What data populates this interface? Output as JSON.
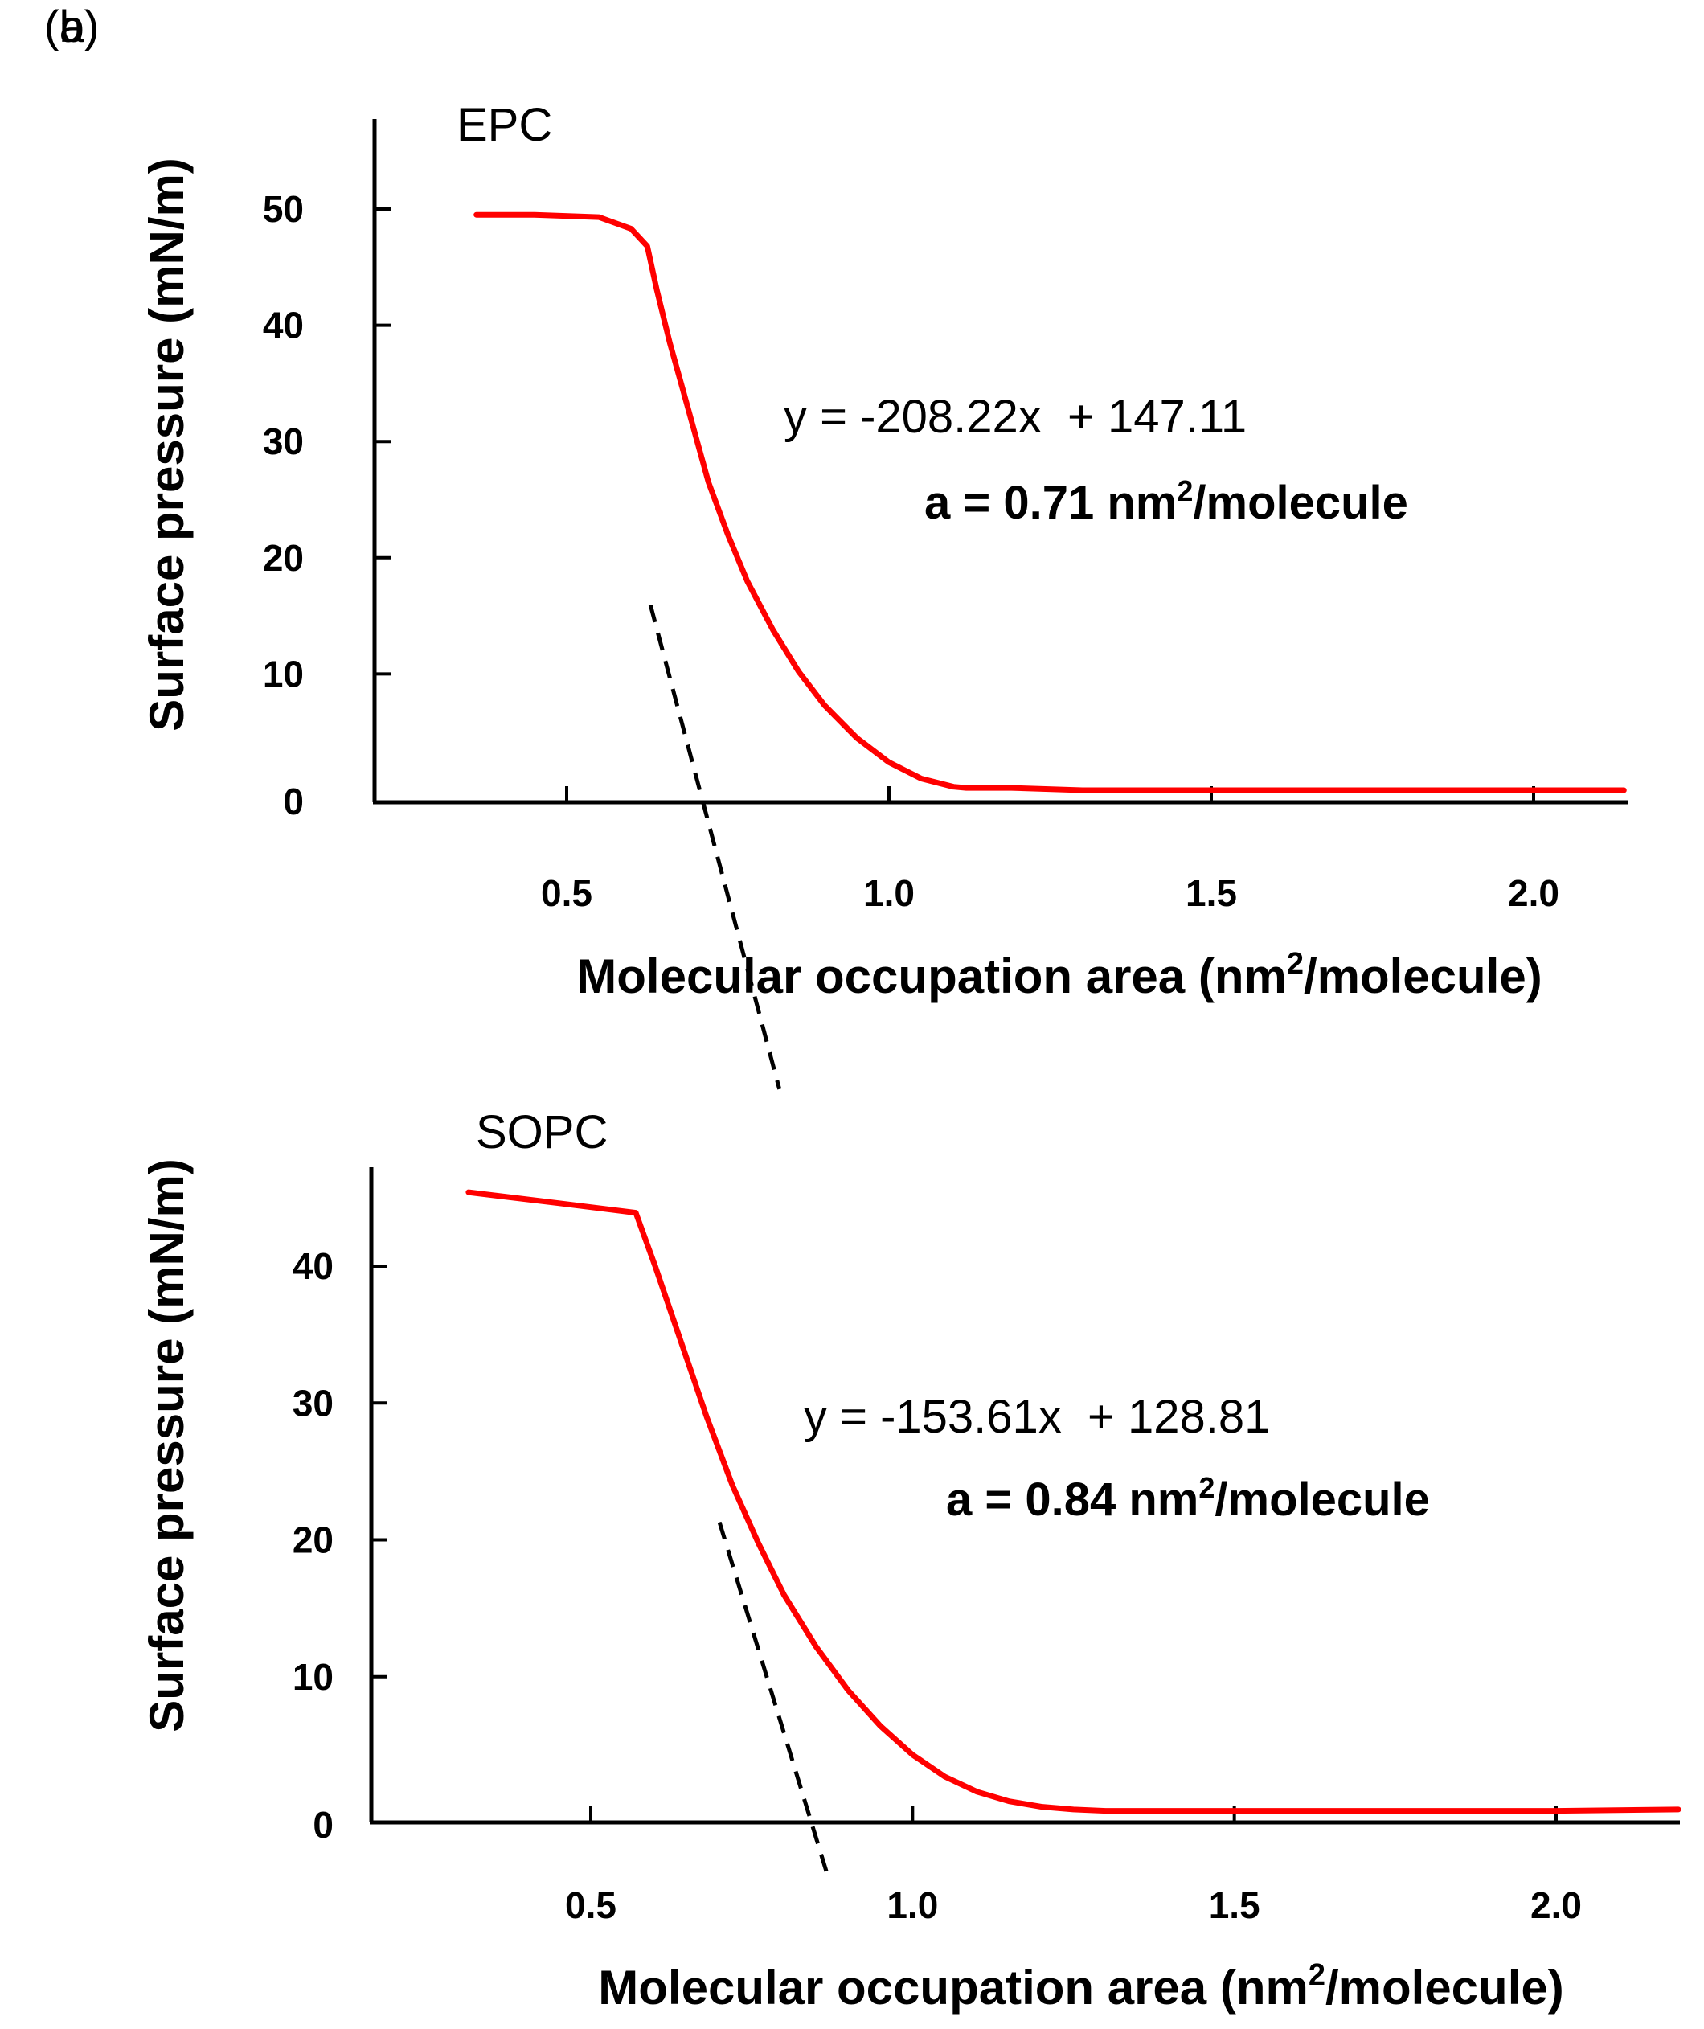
{
  "chart_data": [
    {
      "type": "line",
      "panel_label": "(a)",
      "sample": "EPC",
      "xlabel_main": "Molecular occupation area (nm",
      "xlabel_sup": "2",
      "xlabel_end": "/molecule)",
      "ylabel": "Surface pressure (mN/m)",
      "xlim": [
        0.2,
        2.15
      ],
      "ylim": [
        -1,
        60
      ],
      "xticks": [
        0.5,
        1.0,
        1.5,
        2.0
      ],
      "xtick_labels": [
        "0.5",
        "1.0",
        "1.5",
        "2.0"
      ],
      "yticks": [
        0,
        10,
        20,
        30,
        40,
        50
      ],
      "ytick_labels": [
        "0",
        "10",
        "20",
        "30",
        "40",
        "50"
      ],
      "fit_equation": "y = -208.22x  + 147.11",
      "fit": {
        "slope": -208.22,
        "intercept": 147.11,
        "x_range": [
          0.63,
          0.83
        ]
      },
      "area_prefix": "a = 0.71 nm",
      "area_sup": "2",
      "area_suffix": "/molecule",
      "curve_color": "#ff0000",
      "fit_color": "#000000",
      "series": [
        {
          "name": "EPC isotherm",
          "x": [
            0.36,
            0.45,
            0.55,
            0.6,
            0.625,
            0.64,
            0.66,
            0.68,
            0.7,
            0.72,
            0.75,
            0.78,
            0.82,
            0.86,
            0.9,
            0.95,
            1.0,
            1.05,
            1.1,
            1.12,
            1.19,
            1.3,
            1.5,
            1.8,
            2.0,
            2.14
          ],
          "y": [
            49.5,
            49.5,
            49.3,
            48.3,
            46.8,
            43.0,
            38.5,
            34.5,
            30.5,
            26.5,
            22.0,
            18.0,
            13.8,
            10.2,
            7.3,
            4.5,
            2.4,
            1.0,
            0.3,
            0.2,
            0.2,
            0,
            0,
            0,
            0,
            0
          ]
        }
      ]
    },
    {
      "type": "line",
      "panel_label": "(b)",
      "sample": "SOPC",
      "xlabel_main": "Molecular occupation area (nm",
      "xlabel_sup": "2",
      "xlabel_end": "/molecule)",
      "ylabel": "Surface pressure (mN/m)",
      "xlim": [
        0.16,
        2.2
      ],
      "ylim": [
        -0.5,
        48
      ],
      "xticks": [
        0.5,
        1.0,
        1.5,
        2.0
      ],
      "xtick_labels": [
        "0.5",
        "1.0",
        "1.5",
        "2.0"
      ],
      "yticks": [
        0,
        10,
        20,
        30,
        40
      ],
      "ytick_labels": [
        "0",
        "10",
        "20",
        "30",
        "40"
      ],
      "fit_equation": "y = -153.61x  + 128.81",
      "fit": {
        "slope": -153.61,
        "intercept": 128.81,
        "x_range": [
          0.7,
          0.87
        ]
      },
      "area_prefix": "a = 0.84 nm",
      "area_sup": "2",
      "area_suffix": "/molecule",
      "curve_color": "#ff0000",
      "fit_color": "#000000",
      "series": [
        {
          "name": "SOPC isotherm",
          "x": [
            0.31,
            0.45,
            0.57,
            0.6,
            0.64,
            0.68,
            0.72,
            0.76,
            0.8,
            0.85,
            0.9,
            0.95,
            1.0,
            1.05,
            1.1,
            1.15,
            1.2,
            1.25,
            1.3,
            1.5,
            1.8,
            2.0,
            2.19
          ],
          "y": [
            45.4,
            44.6,
            43.9,
            40.0,
            34.5,
            29.0,
            24.0,
            19.8,
            16.0,
            12.2,
            9.0,
            6.4,
            4.3,
            2.7,
            1.6,
            0.9,
            0.5,
            0.3,
            0.2,
            0.2,
            0.2,
            0.2,
            0.3
          ]
        }
      ]
    }
  ]
}
